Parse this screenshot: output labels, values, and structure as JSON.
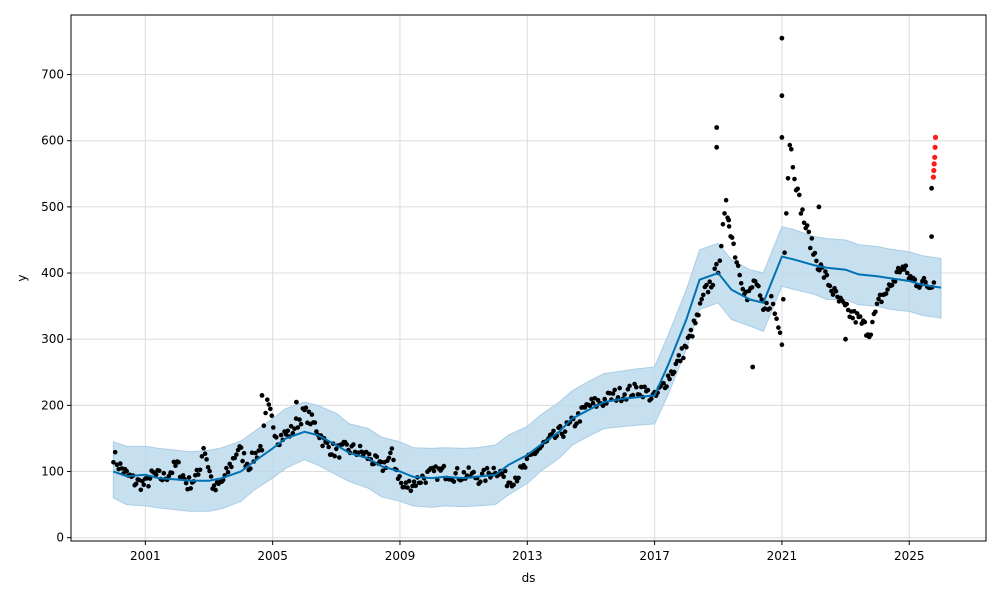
{
  "chart_data": {
    "type": "line",
    "title": "",
    "xlabel": "ds",
    "ylabel": "y",
    "x_ticks": [
      "2001",
      "2005",
      "2009",
      "2013",
      "2017",
      "2021",
      "2025"
    ],
    "y_ticks": [
      "0",
      "100",
      "200",
      "300",
      "400",
      "500",
      "600",
      "700"
    ],
    "xlim": [
      "1998-09-01",
      "2027-06-01"
    ],
    "ylim": [
      -5,
      790
    ],
    "grid": true,
    "legend": "none",
    "colors": {
      "forecast_line": "#0072B2",
      "uncertainty_band": "#b9d8ec",
      "observed_points": "#000000",
      "outlier_points": "#ff1a1a"
    },
    "series": [
      {
        "kind": "forecast",
        "x": [
          "2000-01-01",
          "2000-06-01",
          "2001-01-01",
          "2001-06-01",
          "2002-01-01",
          "2002-06-01",
          "2003-01-01",
          "2003-06-01",
          "2004-01-01",
          "2004-06-01",
          "2005-01-01",
          "2005-06-01",
          "2006-01-01",
          "2006-06-01",
          "2007-01-01",
          "2007-06-01",
          "2008-01-01",
          "2008-06-01",
          "2009-01-01",
          "2009-06-01",
          "2010-01-01",
          "2010-06-01",
          "2011-01-01",
          "2011-06-01",
          "2012-01-01",
          "2012-06-01",
          "2013-01-01",
          "2013-06-01",
          "2014-01-01",
          "2014-06-01",
          "2015-01-01",
          "2015-06-01",
          "2016-01-01",
          "2016-06-01",
          "2017-01-01",
          "2017-06-01",
          "2018-01-01",
          "2018-06-01",
          "2019-01-01",
          "2019-06-01",
          "2020-01-01",
          "2020-06-01",
          "2021-01-01",
          "2021-06-01",
          "2022-01-01",
          "2022-06-01",
          "2023-01-01",
          "2023-06-01",
          "2024-01-01",
          "2024-06-01",
          "2025-01-01",
          "2025-06-01",
          "2026-01-01"
        ],
        "yhat": [
          100,
          93,
          95,
          90,
          88,
          86,
          86,
          90,
          100,
          115,
          135,
          150,
          160,
          155,
          140,
          128,
          120,
          108,
          100,
          92,
          90,
          92,
          90,
          92,
          95,
          110,
          125,
          140,
          160,
          180,
          195,
          205,
          210,
          212,
          215,
          260,
          330,
          390,
          400,
          375,
          360,
          355,
          425,
          420,
          412,
          408,
          405,
          398,
          395,
          392,
          388,
          382,
          378
        ],
        "lower": [
          60,
          50,
          48,
          45,
          42,
          40,
          40,
          44,
          55,
          72,
          90,
          105,
          118,
          110,
          95,
          85,
          75,
          62,
          55,
          48,
          46,
          48,
          47,
          48,
          50,
          65,
          82,
          100,
          120,
          140,
          155,
          165,
          168,
          170,
          172,
          215,
          285,
          345,
          355,
          330,
          320,
          312,
          380,
          375,
          368,
          360,
          360,
          352,
          350,
          345,
          342,
          336,
          332
        ],
        "upper": [
          145,
          138,
          138,
          135,
          132,
          130,
          132,
          136,
          146,
          160,
          180,
          195,
          205,
          200,
          188,
          172,
          165,
          152,
          145,
          136,
          135,
          136,
          135,
          136,
          140,
          155,
          168,
          185,
          205,
          222,
          238,
          248,
          252,
          255,
          258,
          305,
          375,
          435,
          445,
          420,
          405,
          400,
          470,
          465,
          455,
          452,
          450,
          443,
          440,
          436,
          432,
          426,
          422
        ]
      },
      {
        "kind": "observed",
        "x": [
          "2000-01-01",
          "2000-03-01",
          "2000-06-01",
          "2000-09-01",
          "2001-01-01",
          "2001-04-01",
          "2001-08-01",
          "2002-01-01",
          "2002-05-01",
          "2002-09-01",
          "2002-11-01",
          "2003-03-01",
          "2003-07-01",
          "2003-12-01",
          "2004-04-01",
          "2004-09-01",
          "2004-11-01",
          "2005-03-01",
          "2005-08-01",
          "2006-01-01",
          "2006-05-01",
          "2006-09-01",
          "2007-01-01",
          "2007-05-01",
          "2007-10-01",
          "2008-02-01",
          "2008-06-01",
          "2008-10-01",
          "2009-02-01",
          "2009-07-01",
          "2009-12-01",
          "2010-05-01",
          "2010-10-01",
          "2011-03-01",
          "2011-08-01",
          "2012-01-01",
          "2012-06-01",
          "2012-11-01",
          "2013-04-01",
          "2013-09-01",
          "2014-02-01",
          "2014-07-01",
          "2014-12-01",
          "2015-05-01",
          "2015-10-01",
          "2016-03-01",
          "2016-08-01",
          "2017-01-01",
          "2017-05-01",
          "2017-09-01",
          "2018-01-01",
          "2018-05-01",
          "2018-08-01",
          "2018-11-01",
          "2019-01-01",
          "2019-04-01",
          "2019-08-01",
          "2019-12-01",
          "2020-03-01",
          "2020-06-01",
          "2020-09-01",
          "2020-11-01",
          "2021-01-01",
          "2021-02-01",
          "2021-04-01",
          "2021-07-01",
          "2021-10-01",
          "2022-02-01",
          "2022-06-01",
          "2022-10-01",
          "2023-02-01",
          "2023-06-01",
          "2023-10-01",
          "2024-02-01",
          "2024-06-01",
          "2024-10-01",
          "2025-02-01",
          "2025-06-01",
          "2025-09-01",
          "2025-11-01"
        ],
        "y": [
          125,
          110,
          95,
          85,
          80,
          95,
          90,
          110,
          80,
          95,
          140,
          70,
          90,
          135,
          110,
          140,
          200,
          150,
          160,
          190,
          170,
          140,
          130,
          135,
          130,
          120,
          105,
          125,
          75,
          85,
          95,
          100,
          95,
          95,
          90,
          105,
          85,
          100,
          130,
          145,
          160,
          175,
          200,
          205,
          215,
          220,
          225,
          210,
          235,
          260,
          290,
          330,
          370,
          390,
          410,
          500,
          420,
          360,
          390,
          340,
          360,
          330,
          300,
          440,
          600,
          520,
          470,
          420,
          390,
          360,
          340,
          330,
          310,
          360,
          380,
          410,
          390,
          385,
          380,
          400
        ],
        "extremes": [
          {
            "x": "2004-09-01",
            "y": 215
          },
          {
            "x": "2005-10-01",
            "y": 205
          },
          {
            "x": "2018-12-15",
            "y": 620
          },
          {
            "x": "2018-12-15",
            "y": 590
          },
          {
            "x": "2019-05-01",
            "y": 480
          },
          {
            "x": "2020-02-01",
            "y": 258
          },
          {
            "x": "2021-01-01",
            "y": 755
          },
          {
            "x": "2021-01-01",
            "y": 668
          },
          {
            "x": "2021-01-01",
            "y": 605
          },
          {
            "x": "2022-03-01",
            "y": 500
          },
          {
            "x": "2023-01-01",
            "y": 300
          },
          {
            "x": "2025-09-15",
            "y": 455
          },
          {
            "x": "2025-09-15",
            "y": 528
          }
        ]
      },
      {
        "kind": "outliers",
        "x": [
          "2025-10-05",
          "2025-10-10",
          "2025-10-15",
          "2025-10-20",
          "2025-10-25",
          "2025-10-30"
        ],
        "y": [
          545,
          555,
          565,
          575,
          590,
          605
        ]
      }
    ]
  }
}
